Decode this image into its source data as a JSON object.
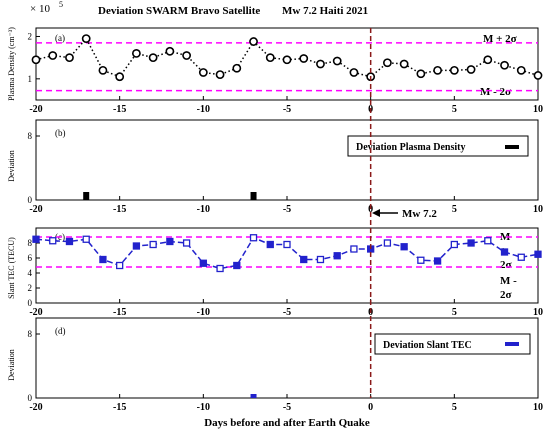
{
  "figure": {
    "header_title": "Deviation  SWARM Bravo Satellite",
    "header_event": "Mw 7.2 Haiti 2021",
    "xlabel": "Days before and after Earth Quake",
    "event_label": "Mw 7.2",
    "colors": {
      "black": "#000000",
      "magenta": "#ff00ff",
      "event_line": "#8b1a1a",
      "blue": "#2222cc"
    }
  },
  "chart_data": [
    {
      "id": "a",
      "type": "line",
      "panel_label": "(a)",
      "ylabel": "Plasma Density (cm⁻³)",
      "exponent_label": "× 10",
      "exponent_power": "5",
      "xlim": [
        -20,
        10
      ],
      "ylim": [
        0.5,
        2.2
      ],
      "yticks": [
        "1",
        "2"
      ],
      "xticks": [
        "-20",
        "-15",
        "-10",
        "-5",
        "0",
        "5",
        "10"
      ],
      "series": [
        {
          "style": "black dotted line, open circle markers",
          "x": [
            -20,
            -19,
            -18,
            -17,
            -16,
            -15,
            -14,
            -13,
            -12,
            -11,
            -10,
            -9,
            -8,
            -7,
            -6,
            -5,
            -4,
            -3,
            -2,
            -1,
            0,
            1,
            2,
            3,
            4,
            5,
            6,
            7,
            8,
            9,
            10
          ],
          "y": [
            1.45,
            1.55,
            1.5,
            1.95,
            1.2,
            1.05,
            1.6,
            1.5,
            1.65,
            1.55,
            1.15,
            1.1,
            1.25,
            1.88,
            1.5,
            1.45,
            1.48,
            1.35,
            1.42,
            1.15,
            1.05,
            1.38,
            1.35,
            1.12,
            1.2,
            1.2,
            1.22,
            1.45,
            1.32,
            1.2,
            1.08
          ]
        }
      ],
      "bounds": [
        {
          "label": "M + 2σ",
          "y": 1.85,
          "style": "magenta dashed"
        },
        {
          "label": "M - 2σ",
          "y": 0.72,
          "style": "magenta dashed"
        }
      ]
    },
    {
      "id": "b",
      "type": "bar",
      "panel_label": "(b)",
      "ylabel": "Deviation",
      "legend": "Deviation Plasma Density",
      "legend_position": "top-right",
      "xlim": [
        -20,
        10
      ],
      "ylim": [
        0,
        10
      ],
      "yticks": [
        "0",
        "8"
      ],
      "xticks": [
        "-20",
        "-15",
        "-10",
        "-5",
        "0",
        "5",
        "10"
      ],
      "x": [
        -17,
        -7
      ],
      "values": [
        1,
        1
      ]
    },
    {
      "id": "c",
      "type": "line",
      "panel_label": "(c)",
      "ylabel": "Slant TEC (TECU)",
      "xlim": [
        -20,
        10
      ],
      "ylim": [
        0,
        10
      ],
      "yticks": [
        "0",
        "2",
        "4",
        "6",
        "8"
      ],
      "xticks": [
        "-20",
        "-15",
        "-10",
        "-5",
        "0",
        "5",
        "10"
      ],
      "series": [
        {
          "style": "blue dashed line, square markers",
          "x": [
            -20,
            -19,
            -18,
            -17,
            -16,
            -15,
            -14,
            -13,
            -12,
            -11,
            -10,
            -9,
            -8,
            -7,
            -6,
            -5,
            -4,
            -3,
            -2,
            -1,
            0,
            1,
            2,
            3,
            4,
            5,
            6,
            7,
            8,
            9,
            10
          ],
          "y": [
            8.5,
            8.3,
            8.2,
            8.5,
            5.8,
            5.0,
            7.6,
            7.8,
            8.2,
            8.0,
            5.3,
            4.6,
            5.0,
            8.7,
            7.8,
            7.8,
            5.8,
            5.8,
            6.3,
            7.2,
            7.2,
            8.0,
            7.5,
            5.7,
            5.6,
            7.8,
            8.0,
            8.3,
            6.8,
            6.1,
            6.5
          ]
        }
      ],
      "bounds": [
        {
          "label": "M + 2σ",
          "y": 8.8,
          "style": "magenta dashed"
        },
        {
          "label": "M - 2σ",
          "y": 4.8,
          "style": "magenta dashed"
        }
      ]
    },
    {
      "id": "d",
      "type": "bar",
      "panel_label": "(d)",
      "ylabel": "Deviation",
      "legend": "Deviation Slant TEC",
      "legend_position": "top-right",
      "xlim": [
        -20,
        10
      ],
      "ylim": [
        0,
        10
      ],
      "yticks": [
        "0",
        "8"
      ],
      "xticks": [
        "-20",
        "-15",
        "-10",
        "-5",
        "0",
        "5",
        "10"
      ],
      "x": [
        -7
      ],
      "values": [
        0.5
      ]
    }
  ]
}
